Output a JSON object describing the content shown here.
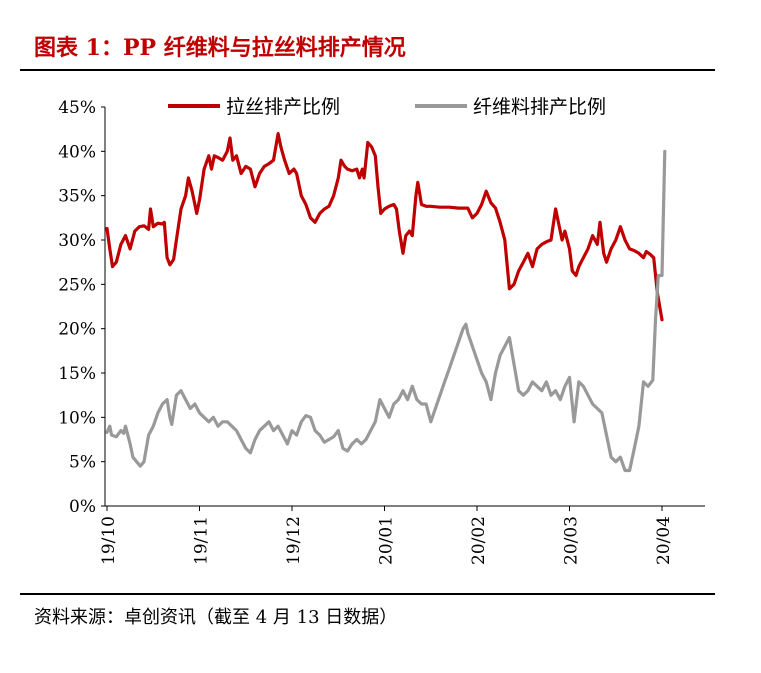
{
  "title": "图表 1：PP 纤维料与拉丝料排产情况",
  "source": "资料来源：卓创资讯（截至 4 月 13 日数据）",
  "chart_data": {
    "type": "line",
    "title": "图表 1：PP 纤维料与拉丝料排产情况",
    "xlabel": "",
    "ylabel": "",
    "ylim": [
      0,
      45
    ],
    "y_ticks": [
      "0%",
      "5%",
      "10%",
      "15%",
      "20%",
      "25%",
      "30%",
      "35%",
      "40%",
      "45%"
    ],
    "x_range": [
      0,
      6.1
    ],
    "x_ticks": [
      {
        "pos": 0,
        "label": "19/10"
      },
      {
        "pos": 1,
        "label": "19/11"
      },
      {
        "pos": 2,
        "label": "19/12"
      },
      {
        "pos": 3,
        "label": "20/01"
      },
      {
        "pos": 4,
        "label": "20/02"
      },
      {
        "pos": 5,
        "label": "20/03"
      },
      {
        "pos": 6,
        "label": "20/04"
      }
    ],
    "grid": false,
    "legend_position": "top",
    "series": [
      {
        "name": "拉丝排产比例",
        "color": "#c00000",
        "points": [
          [
            0.0,
            31.3
          ],
          [
            0.03,
            29
          ],
          [
            0.06,
            27
          ],
          [
            0.1,
            27.5
          ],
          [
            0.15,
            29.5
          ],
          [
            0.2,
            30.5
          ],
          [
            0.25,
            29
          ],
          [
            0.3,
            31
          ],
          [
            0.35,
            31.5
          ],
          [
            0.4,
            31.6
          ],
          [
            0.45,
            31.2
          ],
          [
            0.47,
            33.5
          ],
          [
            0.5,
            31.5
          ],
          [
            0.55,
            31.9
          ],
          [
            0.6,
            31.8
          ],
          [
            0.62,
            32
          ],
          [
            0.65,
            28
          ],
          [
            0.68,
            27.2
          ],
          [
            0.72,
            27.8
          ],
          [
            0.75,
            30
          ],
          [
            0.8,
            33.5
          ],
          [
            0.85,
            35
          ],
          [
            0.88,
            37
          ],
          [
            0.92,
            35.5
          ],
          [
            0.95,
            34
          ],
          [
            0.97,
            33
          ],
          [
            1.0,
            34.5
          ],
          [
            1.05,
            38
          ],
          [
            1.1,
            39.5
          ],
          [
            1.13,
            38
          ],
          [
            1.16,
            39.5
          ],
          [
            1.2,
            39.3
          ],
          [
            1.25,
            39
          ],
          [
            1.3,
            40
          ],
          [
            1.33,
            41.5
          ],
          [
            1.36,
            39
          ],
          [
            1.4,
            39.5
          ],
          [
            1.45,
            37.5
          ],
          [
            1.5,
            38.3
          ],
          [
            1.55,
            38
          ],
          [
            1.6,
            36
          ],
          [
            1.65,
            37.5
          ],
          [
            1.7,
            38.3
          ],
          [
            1.75,
            38.6
          ],
          [
            1.8,
            39
          ],
          [
            1.85,
            42
          ],
          [
            1.88,
            40.5
          ],
          [
            1.92,
            39
          ],
          [
            1.97,
            37.5
          ],
          [
            2.02,
            38
          ],
          [
            2.05,
            37.5
          ],
          [
            2.1,
            35
          ],
          [
            2.15,
            34
          ],
          [
            2.2,
            32.5
          ],
          [
            2.25,
            32
          ],
          [
            2.3,
            33
          ],
          [
            2.35,
            33.5
          ],
          [
            2.4,
            33.8
          ],
          [
            2.45,
            35
          ],
          [
            2.5,
            37
          ],
          [
            2.53,
            39
          ],
          [
            2.57,
            38.3
          ],
          [
            2.6,
            38
          ],
          [
            2.65,
            37.8
          ],
          [
            2.7,
            38
          ],
          [
            2.73,
            37
          ],
          [
            2.76,
            38
          ],
          [
            2.78,
            37
          ],
          [
            2.82,
            41
          ],
          [
            2.86,
            40.5
          ],
          [
            2.9,
            39.5
          ],
          [
            2.93,
            36
          ],
          [
            2.96,
            33
          ],
          [
            3.0,
            33.5
          ],
          [
            3.05,
            33.8
          ],
          [
            3.1,
            34
          ],
          [
            3.13,
            33.5
          ],
          [
            3.16,
            31
          ],
          [
            3.2,
            28.5
          ],
          [
            3.23,
            30.5
          ],
          [
            3.27,
            31
          ],
          [
            3.3,
            30.5
          ],
          [
            3.34,
            35
          ],
          [
            3.36,
            36.5
          ],
          [
            3.4,
            34
          ],
          [
            3.45,
            33.8
          ],
          [
            3.5,
            33.8
          ],
          [
            3.6,
            33.7
          ],
          [
            3.7,
            33.7
          ],
          [
            3.8,
            33.6
          ],
          [
            3.9,
            33.6
          ],
          [
            3.95,
            32.5
          ],
          [
            4.0,
            33
          ],
          [
            4.05,
            34
          ],
          [
            4.1,
            35.5
          ],
          [
            4.15,
            34.2
          ],
          [
            4.2,
            33.6
          ],
          [
            4.25,
            32
          ],
          [
            4.3,
            30
          ],
          [
            4.35,
            24.5
          ],
          [
            4.4,
            25
          ],
          [
            4.45,
            26.5
          ],
          [
            4.5,
            27.5
          ],
          [
            4.55,
            28.5
          ],
          [
            4.6,
            27
          ],
          [
            4.65,
            29
          ],
          [
            4.7,
            29.5
          ],
          [
            4.75,
            29.8
          ],
          [
            4.8,
            30
          ],
          [
            4.85,
            33.5
          ],
          [
            4.88,
            32
          ],
          [
            4.92,
            30
          ],
          [
            4.95,
            31
          ],
          [
            5.0,
            29
          ],
          [
            5.03,
            26.5
          ],
          [
            5.07,
            26
          ],
          [
            5.1,
            27
          ],
          [
            5.15,
            28
          ],
          [
            5.2,
            29
          ],
          [
            5.25,
            30.5
          ],
          [
            5.3,
            29.5
          ],
          [
            5.33,
            32
          ],
          [
            5.37,
            28.5
          ],
          [
            5.4,
            27.5
          ],
          [
            5.45,
            29
          ],
          [
            5.5,
            30
          ],
          [
            5.55,
            31.5
          ],
          [
            5.6,
            30
          ],
          [
            5.65,
            29
          ],
          [
            5.7,
            28.8
          ],
          [
            5.75,
            28.5
          ],
          [
            5.8,
            28
          ],
          [
            5.83,
            28.7
          ],
          [
            5.87,
            28.4
          ],
          [
            5.91,
            28
          ],
          [
            5.95,
            24
          ],
          [
            6.0,
            21
          ]
        ]
      },
      {
        "name": "纤维料排产比例",
        "color": "#999999",
        "points": [
          [
            0.0,
            8.3
          ],
          [
            0.03,
            9
          ],
          [
            0.05,
            8
          ],
          [
            0.1,
            7.8
          ],
          [
            0.15,
            8.5
          ],
          [
            0.18,
            8.2
          ],
          [
            0.2,
            9
          ],
          [
            0.25,
            7
          ],
          [
            0.28,
            5.5
          ],
          [
            0.32,
            5
          ],
          [
            0.36,
            4.5
          ],
          [
            0.4,
            5
          ],
          [
            0.45,
            8
          ],
          [
            0.5,
            9
          ],
          [
            0.55,
            10.5
          ],
          [
            0.6,
            11.5
          ],
          [
            0.65,
            12
          ],
          [
            0.68,
            10
          ],
          [
            0.7,
            9.2
          ],
          [
            0.75,
            12.5
          ],
          [
            0.8,
            13
          ],
          [
            0.85,
            12
          ],
          [
            0.9,
            11
          ],
          [
            0.95,
            11.5
          ],
          [
            1.0,
            10.5
          ],
          [
            1.05,
            10
          ],
          [
            1.1,
            9.5
          ],
          [
            1.15,
            10
          ],
          [
            1.2,
            9
          ],
          [
            1.25,
            9.5
          ],
          [
            1.3,
            9.5
          ],
          [
            1.35,
            9
          ],
          [
            1.4,
            8.5
          ],
          [
            1.45,
            7.5
          ],
          [
            1.5,
            6.5
          ],
          [
            1.55,
            6
          ],
          [
            1.6,
            7.5
          ],
          [
            1.65,
            8.5
          ],
          [
            1.7,
            9
          ],
          [
            1.75,
            9.5
          ],
          [
            1.8,
            8.5
          ],
          [
            1.85,
            9
          ],
          [
            1.9,
            8
          ],
          [
            1.95,
            7
          ],
          [
            2.0,
            8.5
          ],
          [
            2.05,
            8
          ],
          [
            2.1,
            9.5
          ],
          [
            2.15,
            10.2
          ],
          [
            2.2,
            10
          ],
          [
            2.25,
            8.5
          ],
          [
            2.3,
            8
          ],
          [
            2.35,
            7.2
          ],
          [
            2.4,
            7.5
          ],
          [
            2.45,
            7.8
          ],
          [
            2.5,
            8.5
          ],
          [
            2.55,
            6.5
          ],
          [
            2.6,
            6.2
          ],
          [
            2.65,
            7
          ],
          [
            2.7,
            7.5
          ],
          [
            2.75,
            7
          ],
          [
            2.8,
            7.5
          ],
          [
            2.85,
            8.5
          ],
          [
            2.9,
            9.5
          ],
          [
            2.95,
            12
          ],
          [
            3.0,
            11
          ],
          [
            3.05,
            10
          ],
          [
            3.1,
            11.5
          ],
          [
            3.15,
            12
          ],
          [
            3.2,
            13
          ],
          [
            3.25,
            12
          ],
          [
            3.3,
            13.5
          ],
          [
            3.35,
            12
          ],
          [
            3.4,
            11.5
          ],
          [
            3.45,
            11.5
          ],
          [
            3.5,
            9.5
          ],
          [
            3.55,
            11
          ],
          [
            3.6,
            12.5
          ],
          [
            3.65,
            14
          ],
          [
            3.7,
            15.5
          ],
          [
            3.75,
            17
          ],
          [
            3.8,
            18.5
          ],
          [
            3.85,
            20
          ],
          [
            3.88,
            20.5
          ],
          [
            3.9,
            19.5
          ],
          [
            3.95,
            18
          ],
          [
            4.0,
            16.5
          ],
          [
            4.05,
            15
          ],
          [
            4.1,
            14
          ],
          [
            4.15,
            12
          ],
          [
            4.2,
            15
          ],
          [
            4.25,
            17
          ],
          [
            4.3,
            18
          ],
          [
            4.35,
            19
          ],
          [
            4.4,
            16
          ],
          [
            4.45,
            13
          ],
          [
            4.5,
            12.5
          ],
          [
            4.55,
            13
          ],
          [
            4.6,
            14
          ],
          [
            4.65,
            13.5
          ],
          [
            4.7,
            13
          ],
          [
            4.75,
            14
          ],
          [
            4.8,
            12.5
          ],
          [
            4.85,
            13
          ],
          [
            4.9,
            12
          ],
          [
            4.95,
            13.5
          ],
          [
            5.0,
            14.5
          ],
          [
            5.05,
            9.5
          ],
          [
            5.1,
            14
          ],
          [
            5.15,
            13.5
          ],
          [
            5.2,
            12.5
          ],
          [
            5.25,
            11.5
          ],
          [
            5.3,
            11
          ],
          [
            5.35,
            10.5
          ],
          [
            5.4,
            8
          ],
          [
            5.45,
            5.5
          ],
          [
            5.5,
            5
          ],
          [
            5.55,
            5.5
          ],
          [
            5.6,
            4
          ],
          [
            5.65,
            4
          ],
          [
            5.7,
            6.5
          ],
          [
            5.75,
            9
          ],
          [
            5.8,
            14
          ],
          [
            5.85,
            13.5
          ],
          [
            5.9,
            14.2
          ],
          [
            5.93,
            21
          ],
          [
            5.96,
            26
          ],
          [
            6.0,
            26
          ],
          [
            6.03,
            40
          ]
        ]
      }
    ]
  }
}
